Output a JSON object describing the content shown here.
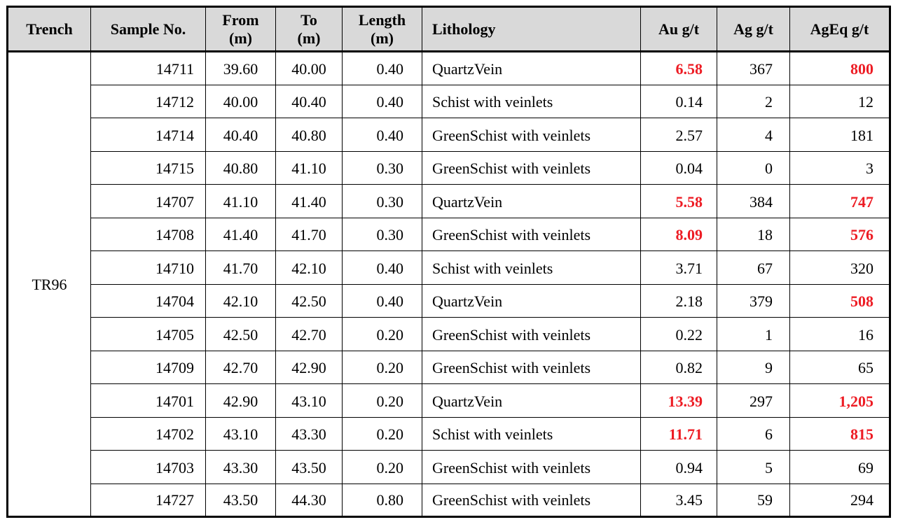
{
  "colors": {
    "header_background": "#d9d9d9",
    "highlight_red": "#ed1c24",
    "border": "#000000",
    "body_text": "#000000"
  },
  "table": {
    "trench": "TR96",
    "columns": [
      {
        "key": "trench",
        "label": "Trench",
        "unit": ""
      },
      {
        "key": "sample",
        "label": "Sample No.",
        "unit": ""
      },
      {
        "key": "from",
        "label": "From",
        "unit": "(m)"
      },
      {
        "key": "to",
        "label": "To",
        "unit": "(m)"
      },
      {
        "key": "length",
        "label": "Length",
        "unit": "(m)"
      },
      {
        "key": "lithology",
        "label": "Lithology",
        "unit": ""
      },
      {
        "key": "au",
        "label": "Au g/t",
        "unit": ""
      },
      {
        "key": "ag",
        "label": "Ag g/t",
        "unit": ""
      },
      {
        "key": "ageq",
        "label": "AgEq g/t",
        "unit": ""
      }
    ],
    "rows": [
      {
        "sample": "14711",
        "from": "39.60",
        "to": "40.00",
        "length": "0.40",
        "lithology": "QuartzVein",
        "au": "6.58",
        "ag": "367",
        "ageq": "800",
        "au_red": true,
        "ageq_red": true
      },
      {
        "sample": "14712",
        "from": "40.00",
        "to": "40.40",
        "length": "0.40",
        "lithology": "Schist with veinlets",
        "au": "0.14",
        "ag": "2",
        "ageq": "12",
        "au_red": false,
        "ageq_red": false
      },
      {
        "sample": "14714",
        "from": "40.40",
        "to": "40.80",
        "length": "0.40",
        "lithology": "GreenSchist with veinlets",
        "au": "2.57",
        "ag": "4",
        "ageq": "181",
        "au_red": false,
        "ageq_red": false
      },
      {
        "sample": "14715",
        "from": "40.80",
        "to": "41.10",
        "length": "0.30",
        "lithology": "GreenSchist with veinlets",
        "au": "0.04",
        "ag": "0",
        "ageq": "3",
        "au_red": false,
        "ageq_red": false
      },
      {
        "sample": "14707",
        "from": "41.10",
        "to": "41.40",
        "length": "0.30",
        "lithology": "QuartzVein",
        "au": "5.58",
        "ag": "384",
        "ageq": "747",
        "au_red": true,
        "ageq_red": true
      },
      {
        "sample": "14708",
        "from": "41.40",
        "to": "41.70",
        "length": "0.30",
        "lithology": "GreenSchist with veinlets",
        "au": "8.09",
        "ag": "18",
        "ageq": "576",
        "au_red": true,
        "ageq_red": true
      },
      {
        "sample": "14710",
        "from": "41.70",
        "to": "42.10",
        "length": "0.40",
        "lithology": "Schist with veinlets",
        "au": "3.71",
        "ag": "67",
        "ageq": "320",
        "au_red": false,
        "ageq_red": false
      },
      {
        "sample": "14704",
        "from": "42.10",
        "to": "42.50",
        "length": "0.40",
        "lithology": "QuartzVein",
        "au": "2.18",
        "ag": "379",
        "ageq": "508",
        "au_red": false,
        "ageq_red": true
      },
      {
        "sample": "14705",
        "from": "42.50",
        "to": "42.70",
        "length": "0.20",
        "lithology": "GreenSchist with veinlets",
        "au": "0.22",
        "ag": "1",
        "ageq": "16",
        "au_red": false,
        "ageq_red": false
      },
      {
        "sample": "14709",
        "from": "42.70",
        "to": "42.90",
        "length": "0.20",
        "lithology": "GreenSchist with veinlets",
        "au": "0.82",
        "ag": "9",
        "ageq": "65",
        "au_red": false,
        "ageq_red": false
      },
      {
        "sample": "14701",
        "from": "42.90",
        "to": "43.10",
        "length": "0.20",
        "lithology": "QuartzVein",
        "au": "13.39",
        "ag": "297",
        "ageq": "1,205",
        "au_red": true,
        "ageq_red": true
      },
      {
        "sample": "14702",
        "from": "43.10",
        "to": "43.30",
        "length": "0.20",
        "lithology": "Schist with veinlets",
        "au": "11.71",
        "ag": "6",
        "ageq": "815",
        "au_red": true,
        "ageq_red": true
      },
      {
        "sample": "14703",
        "from": "43.30",
        "to": "43.50",
        "length": "0.20",
        "lithology": "GreenSchist with veinlets",
        "au": "0.94",
        "ag": "5",
        "ageq": "69",
        "au_red": false,
        "ageq_red": false
      },
      {
        "sample": "14727",
        "from": "43.50",
        "to": "44.30",
        "length": "0.80",
        "lithology": "GreenSchist with veinlets",
        "au": "3.45",
        "ag": "59",
        "ageq": "294",
        "au_red": false,
        "ageq_red": false
      }
    ]
  }
}
